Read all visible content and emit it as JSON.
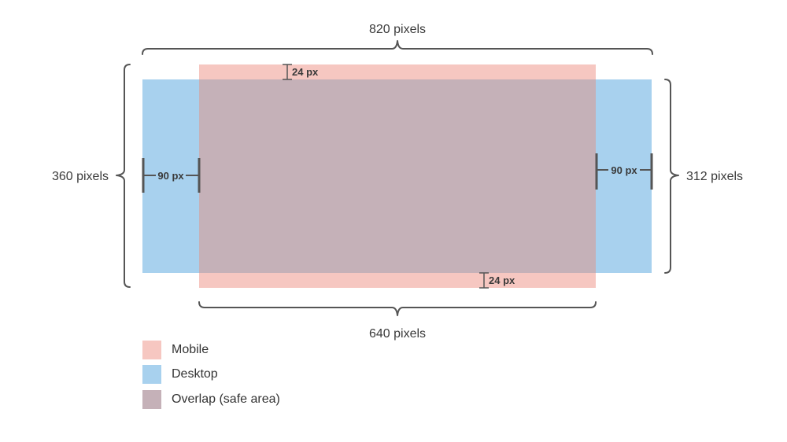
{
  "diagram": {
    "labels": {
      "top_width": "820 pixels",
      "bottom_width": "640 pixels",
      "left_height": "360 pixels",
      "right_height": "312 pixels",
      "top_margin": "24 px",
      "bottom_margin": "24 px",
      "left_margin": "90 px",
      "right_margin": "90 px"
    },
    "colors": {
      "mobile": "#f6c7c1",
      "desktop": "#a8d1ee",
      "overlap": "#c5b1b8",
      "bracket": "#555555"
    }
  },
  "legend": {
    "items": [
      {
        "label": "Mobile",
        "color": "#f6c7c1"
      },
      {
        "label": "Desktop",
        "color": "#a8d1ee"
      },
      {
        "label": "Overlap (safe area)",
        "color": "#c5b1b8"
      }
    ]
  }
}
